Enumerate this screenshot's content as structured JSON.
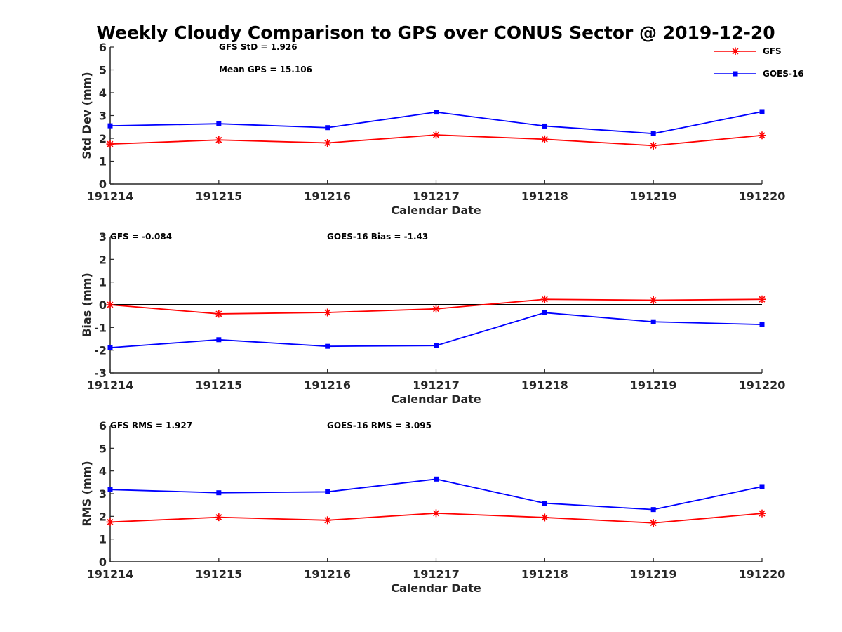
{
  "title": "Weekly Cloudy Comparison to GPS over CONUS Sector @ 2019-12-20",
  "legend": {
    "placement": "top-right",
    "entries": [
      {
        "name": "GFS",
        "color": "#ff0000",
        "marker": "asterisk"
      },
      {
        "name": "GOES-16",
        "color": "#0000ff",
        "marker": "square"
      }
    ]
  },
  "chart_data": [
    {
      "type": "line",
      "xlabel": "Calendar Date",
      "ylabel": "Std Dev (mm)",
      "ylim": [
        0,
        6
      ],
      "yticks": [
        "0",
        "1",
        "2",
        "3",
        "4",
        "5",
        "6"
      ],
      "categories": [
        "191214",
        "191215",
        "191216",
        "191217",
        "191218",
        "191219",
        "191220"
      ],
      "annotations": [
        "GFS StD = 1.926",
        "Mean GPS = 15.106"
      ],
      "series": [
        {
          "name": "GFS",
          "color": "#ff0000",
          "marker": "asterisk",
          "values": [
            1.75,
            1.93,
            1.8,
            2.15,
            1.96,
            1.68,
            2.13
          ]
        },
        {
          "name": "GOES-16",
          "color": "#0000ff",
          "marker": "square",
          "values": [
            2.55,
            2.64,
            2.47,
            3.15,
            2.54,
            2.21,
            3.17
          ]
        }
      ]
    },
    {
      "type": "line",
      "xlabel": "Calendar Date",
      "ylabel": "Bias (mm)",
      "ylim": [
        -3,
        3
      ],
      "yticks": [
        "-3",
        "-2",
        "-1",
        "0",
        "1",
        "2",
        "3"
      ],
      "categories": [
        "191214",
        "191215",
        "191216",
        "191217",
        "191218",
        "191219",
        "191220"
      ],
      "zero_line": true,
      "annotations": [
        "GFS = -0.084",
        "GOES-16 Bias  = -1.43"
      ],
      "series": [
        {
          "name": "GFS",
          "color": "#ff0000",
          "marker": "asterisk",
          "values": [
            0.0,
            -0.4,
            -0.34,
            -0.18,
            0.24,
            0.2,
            0.24
          ]
        },
        {
          "name": "GOES-16",
          "color": "#0000ff",
          "marker": "square",
          "values": [
            -1.89,
            -1.54,
            -1.83,
            -1.8,
            -0.35,
            -0.75,
            -0.87
          ]
        }
      ]
    },
    {
      "type": "line",
      "xlabel": "Calendar Date",
      "ylabel": "RMS (mm)",
      "ylim": [
        0,
        6
      ],
      "yticks": [
        "0",
        "1",
        "2",
        "3",
        "4",
        "5",
        "6"
      ],
      "categories": [
        "191214",
        "191215",
        "191216",
        "191217",
        "191218",
        "191219",
        "191220"
      ],
      "annotations": [
        "GFS RMS = 1.927",
        "GOES-16 RMS = 3.095"
      ],
      "series": [
        {
          "name": "GFS",
          "color": "#ff0000",
          "marker": "asterisk",
          "values": [
            1.75,
            1.96,
            1.83,
            2.14,
            1.95,
            1.71,
            2.13
          ]
        },
        {
          "name": "GOES-16",
          "color": "#0000ff",
          "marker": "square",
          "values": [
            3.18,
            3.04,
            3.08,
            3.64,
            2.58,
            2.3,
            3.31
          ]
        }
      ]
    }
  ]
}
